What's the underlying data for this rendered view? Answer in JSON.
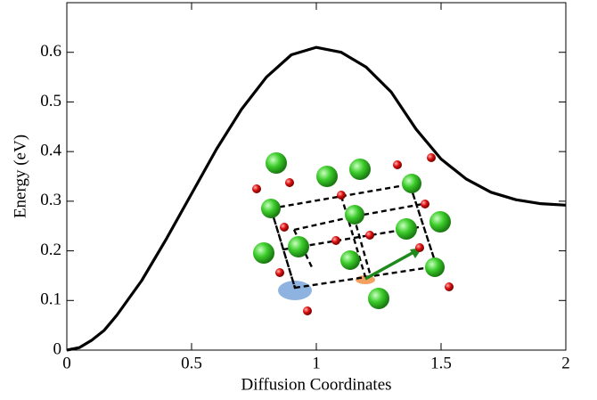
{
  "chart_data": {
    "type": "line",
    "x_label": "Diffusion Coordinates",
    "y_label": "Energy (eV)",
    "x": [
      0,
      0.05,
      0.1,
      0.15,
      0.2,
      0.3,
      0.4,
      0.5,
      0.6,
      0.7,
      0.8,
      0.9,
      1.0,
      1.1,
      1.2,
      1.3,
      1.4,
      1.5,
      1.6,
      1.7,
      1.8,
      1.9,
      2.0
    ],
    "series": [
      {
        "color": "#000000",
        "values": [
          0,
          0.005,
          0.02,
          0.04,
          0.07,
          0.14,
          0.225,
          0.315,
          0.405,
          0.485,
          0.55,
          0.595,
          0.61,
          0.6,
          0.57,
          0.52,
          0.445,
          0.385,
          0.345,
          0.318,
          0.303,
          0.295,
          0.292
        ]
      }
    ],
    "xlim": [
      0,
      2
    ],
    "xticks": [
      0,
      0.5,
      1,
      1.5,
      2
    ],
    "ylim": [
      0,
      0.7
    ],
    "yticks": [
      0,
      0.1,
      0.2,
      0.3,
      0.4,
      0.5,
      0.6
    ]
  }
}
